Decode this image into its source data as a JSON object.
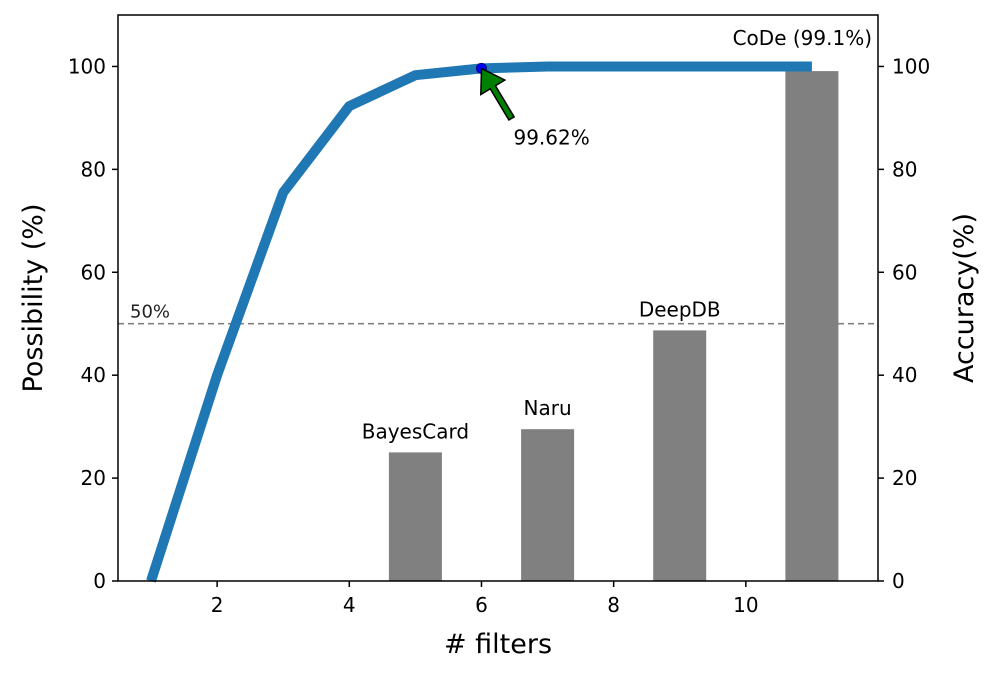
{
  "chart_data": {
    "type": "bar",
    "x": [
      1,
      2,
      3,
      4,
      5,
      6,
      7,
      8,
      9,
      10,
      11
    ],
    "series": [
      {
        "axis": "left",
        "mark": "line",
        "color": "#1f77b4",
        "values": [
          0,
          40,
          75.5,
          92.3,
          98.3,
          99.62,
          100,
          100,
          100,
          100,
          100
        ]
      },
      {
        "axis": "right",
        "mark": "bar",
        "color": "#808080",
        "categories": [
          "BayesCard",
          "Naru",
          "DeepDB",
          "CoDe"
        ],
        "x": [
          5,
          7,
          9,
          11
        ],
        "values": [
          25,
          29.5,
          48.7,
          99.1
        ]
      }
    ],
    "xlabel": "# filters",
    "ylabel": "Possibility (%)",
    "y2label": "Accuracy(%)",
    "xlim": [
      0.5,
      12
    ],
    "ylim": [
      0,
      110
    ],
    "y2lim": [
      0,
      110
    ],
    "xticks": [
      2,
      4,
      6,
      8,
      10
    ],
    "yticks": [
      0,
      20,
      40,
      60,
      80,
      100
    ],
    "y2ticks": [
      0,
      20,
      40,
      60,
      80,
      100
    ],
    "threshold": {
      "value": 50,
      "label": "50%",
      "style": "dashed",
      "color": "#808080"
    },
    "annotation": {
      "text": "99.62%",
      "x": 6,
      "y": 99.62,
      "arrow_color": "#008000",
      "marker_color": "#0000ff"
    },
    "bar_labels": [
      "BayesCard",
      "Naru",
      "DeepDB",
      "CoDe (99.1%)"
    ],
    "grid": false,
    "legend": "none"
  }
}
